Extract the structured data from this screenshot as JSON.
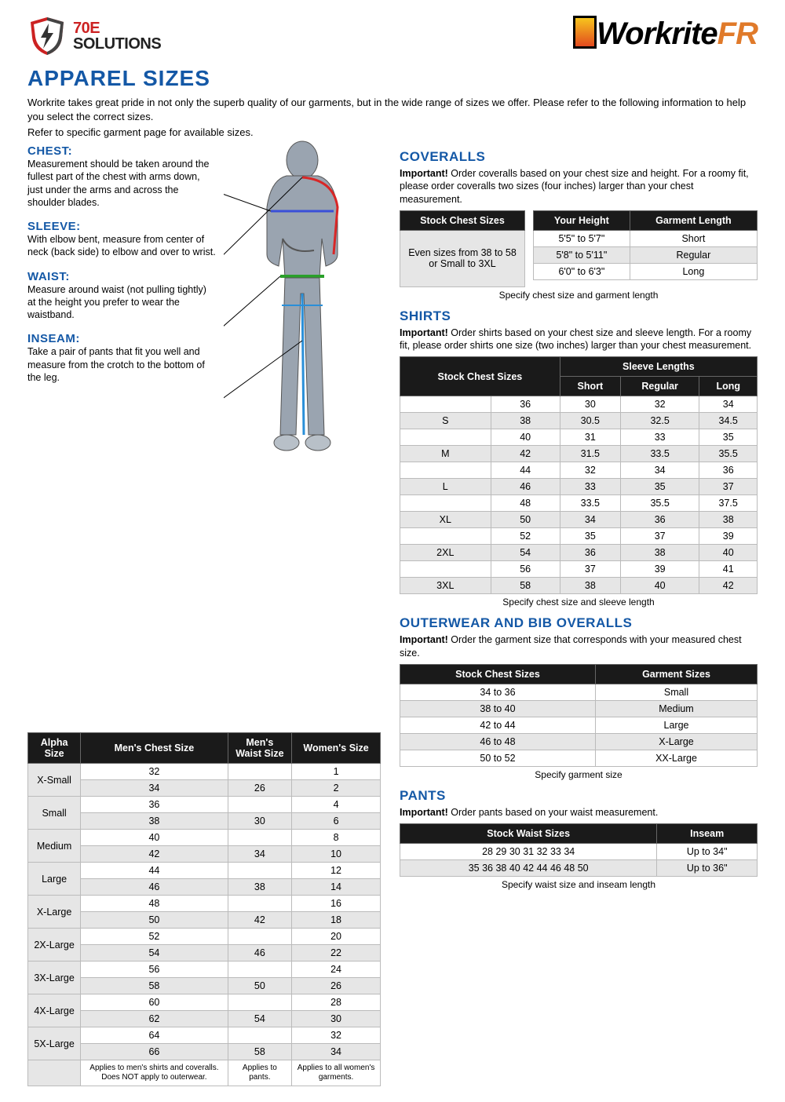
{
  "logo_left": {
    "line1": "70E",
    "line2": "SOLUTIONS"
  },
  "logo_right": {
    "part1": "Workrite",
    "part2": "FR"
  },
  "page_title": "APPAREL SIZES",
  "intro": "Workrite takes great pride in not only the superb quality of our garments, but in the wide range of sizes we offer. Please refer to the following information to help you select the correct sizes.",
  "subintro": "Refer to specific garment page for available sizes.",
  "measurements": {
    "chest": {
      "label": "CHEST:",
      "desc": "Measurement should be taken around the fullest part of the chest with arms down, just under the arms and across the shoulder blades."
    },
    "sleeve": {
      "label": "SLEEVE:",
      "desc": "With elbow bent, measure from center of neck (back side) to elbow and over to wrist."
    },
    "waist": {
      "label": "WAIST:",
      "desc": "Measure around waist (not pulling tightly) at the height you prefer to wear the waistband."
    },
    "inseam": {
      "label": "INSEAM:",
      "desc": "Take a pair of pants that fit you well and measure from the crotch to the bottom of the leg."
    }
  },
  "alpha": {
    "headers": [
      "Alpha Size",
      "Men's Chest Size",
      "Men's Waist Size",
      "Women's Size"
    ],
    "rows": [
      {
        "alpha": "X-Small",
        "r": [
          [
            "32",
            "",
            "1",
            false
          ],
          [
            "34",
            "26",
            "2",
            true
          ]
        ]
      },
      {
        "alpha": "Small",
        "r": [
          [
            "36",
            "",
            "4",
            false
          ],
          [
            "38",
            "30",
            "6",
            true
          ]
        ]
      },
      {
        "alpha": "Medium",
        "r": [
          [
            "40",
            "",
            "8",
            false
          ],
          [
            "42",
            "34",
            "10",
            true
          ]
        ]
      },
      {
        "alpha": "Large",
        "r": [
          [
            "44",
            "",
            "12",
            false
          ],
          [
            "46",
            "38",
            "14",
            true
          ]
        ]
      },
      {
        "alpha": "X-Large",
        "r": [
          [
            "48",
            "",
            "16",
            false
          ],
          [
            "50",
            "42",
            "18",
            true
          ]
        ]
      },
      {
        "alpha": "2X-Large",
        "r": [
          [
            "52",
            "",
            "20",
            false
          ],
          [
            "54",
            "46",
            "22",
            true
          ]
        ]
      },
      {
        "alpha": "3X-Large",
        "r": [
          [
            "56",
            "",
            "24",
            false
          ],
          [
            "58",
            "50",
            "26",
            true
          ]
        ]
      },
      {
        "alpha": "4X-Large",
        "r": [
          [
            "60",
            "",
            "28",
            false
          ],
          [
            "62",
            "54",
            "30",
            true
          ]
        ]
      },
      {
        "alpha": "5X-Large",
        "r": [
          [
            "64",
            "",
            "32",
            false
          ],
          [
            "66",
            "58",
            "34",
            true
          ]
        ]
      }
    ],
    "notes": [
      "Applies to men's shirts and coveralls. Does NOT apply to outerwear.",
      "Applies to pants.",
      "Applies to all women's garments."
    ]
  },
  "coveralls": {
    "title": "COVERALLS",
    "important": "Order coveralls based on your chest size and height. For a roomy fit, please order coveralls two sizes (four inches) larger than your chest measurement.",
    "caption": "Specify chest size and garment length",
    "t1": {
      "header": "Stock Chest Sizes",
      "body": "Even sizes from 38 to 58 or Small to 3XL"
    },
    "t2": {
      "headers": [
        "Your Height",
        "Garment Length"
      ],
      "rows": [
        [
          "5'5\" to 5'7\"",
          "Short",
          false
        ],
        [
          "5'8\" to 5'11\"",
          "Regular",
          true
        ],
        [
          "6'0\" to 6'3\"",
          "Long",
          false
        ]
      ]
    }
  },
  "shirts": {
    "title": "SHIRTS",
    "important": "Order shirts based on your chest size and sleeve length. For a roomy fit, please order shirts one size (two inches) larger than your chest measurement.",
    "caption": "Specify chest size and sleeve length",
    "h1": "Stock Chest Sizes",
    "h2": "Sleeve Lengths",
    "sub": [
      "Short",
      "Regular",
      "Long"
    ],
    "rows": [
      [
        "",
        "36",
        "30",
        "32",
        "34",
        false
      ],
      [
        "S",
        "38",
        "30.5",
        "32.5",
        "34.5",
        true
      ],
      [
        "",
        "40",
        "31",
        "33",
        "35",
        false
      ],
      [
        "M",
        "42",
        "31.5",
        "33.5",
        "35.5",
        true
      ],
      [
        "",
        "44",
        "32",
        "34",
        "36",
        false
      ],
      [
        "L",
        "46",
        "33",
        "35",
        "37",
        true
      ],
      [
        "",
        "48",
        "33.5",
        "35.5",
        "37.5",
        false
      ],
      [
        "XL",
        "50",
        "34",
        "36",
        "38",
        true
      ],
      [
        "",
        "52",
        "35",
        "37",
        "39",
        false
      ],
      [
        "2XL",
        "54",
        "36",
        "38",
        "40",
        true
      ],
      [
        "",
        "56",
        "37",
        "39",
        "41",
        false
      ],
      [
        "3XL",
        "58",
        "38",
        "40",
        "42",
        true
      ]
    ]
  },
  "outerwear": {
    "title": "OUTERWEAR AND BIB OVERALLS",
    "important": "Order the garment size that corresponds with your measured chest size.",
    "caption": "Specify garment size",
    "headers": [
      "Stock Chest Sizes",
      "Garment Sizes"
    ],
    "rows": [
      [
        "34 to 36",
        "Small",
        false
      ],
      [
        "38 to 40",
        "Medium",
        true
      ],
      [
        "42 to 44",
        "Large",
        false
      ],
      [
        "46 to 48",
        "X-Large",
        true
      ],
      [
        "50 to 52",
        "XX-Large",
        false
      ]
    ]
  },
  "pants": {
    "title": "PANTS",
    "important": "Order pants based on your waist measurement.",
    "caption": "Specify waist size and inseam length",
    "headers": [
      "Stock Waist Sizes",
      "Inseam"
    ],
    "rows": [
      [
        "28 29 30 31 32 33 34",
        "Up to 34\"",
        false
      ],
      [
        "35 36 38 40 42 44 46 48 50",
        "Up to 36\"",
        true
      ]
    ]
  },
  "colors": {
    "blue": "#1458a6",
    "dark": "#1a1a1a",
    "shade": "#e6e6e6",
    "red": "#cc2222",
    "orange": "#e07a2a"
  }
}
